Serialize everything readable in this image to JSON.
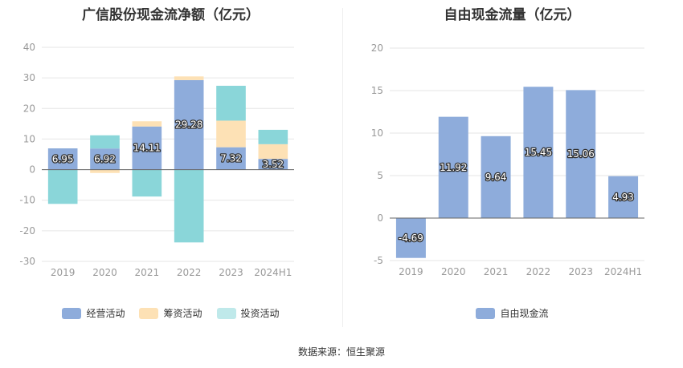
{
  "source_text": "数据来源：恒生聚源",
  "chart_data": [
    {
      "type": "bar",
      "stacked": true,
      "title": "广信股份现金流净额（亿元）",
      "categories": [
        "2019",
        "2020",
        "2021",
        "2022",
        "2023",
        "2024H1"
      ],
      "ylim": [
        -30,
        40
      ],
      "yticks": [
        -30,
        -20,
        -10,
        0,
        10,
        20,
        30,
        40
      ],
      "series": [
        {
          "name": "经营活动",
          "color": "#8eacdb",
          "values": [
            6.95,
            6.92,
            14.11,
            29.28,
            7.32,
            3.52
          ],
          "labels": [
            "6.95",
            "6.92",
            "14.11",
            "29.28",
            "7.32",
            "3.52"
          ]
        },
        {
          "name": "筹资活动",
          "color": "#fde1b5",
          "values": [
            0,
            -1.1,
            1.7,
            1.2,
            8.7,
            4.8
          ]
        },
        {
          "name": "投资活动",
          "color": "#8ad6d9",
          "values": [
            -11.2,
            4.3,
            -8.8,
            -23.8,
            11.4,
            4.7
          ]
        }
      ],
      "legend": [
        "经营活动",
        "筹资活动",
        "投资活动"
      ],
      "legend_colors": [
        "#8eacdb",
        "#fde1b5",
        "#bfe9ea"
      ]
    },
    {
      "type": "bar",
      "title": "自由现金流量（亿元）",
      "categories": [
        "2019",
        "2020",
        "2021",
        "2022",
        "2023",
        "2024H1"
      ],
      "ylim": [
        -5,
        20
      ],
      "yticks": [
        -5,
        0,
        5,
        10,
        15,
        20
      ],
      "series": [
        {
          "name": "自由现金流",
          "color": "#8eacdb",
          "values": [
            -4.69,
            11.92,
            9.64,
            15.45,
            15.06,
            4.93
          ],
          "labels": [
            "-4.69",
            "11.92",
            "9.64",
            "15.45",
            "15.06",
            "4.93"
          ]
        }
      ],
      "legend": [
        "自由现金流"
      ],
      "legend_colors": [
        "#8eacdb"
      ]
    }
  ]
}
